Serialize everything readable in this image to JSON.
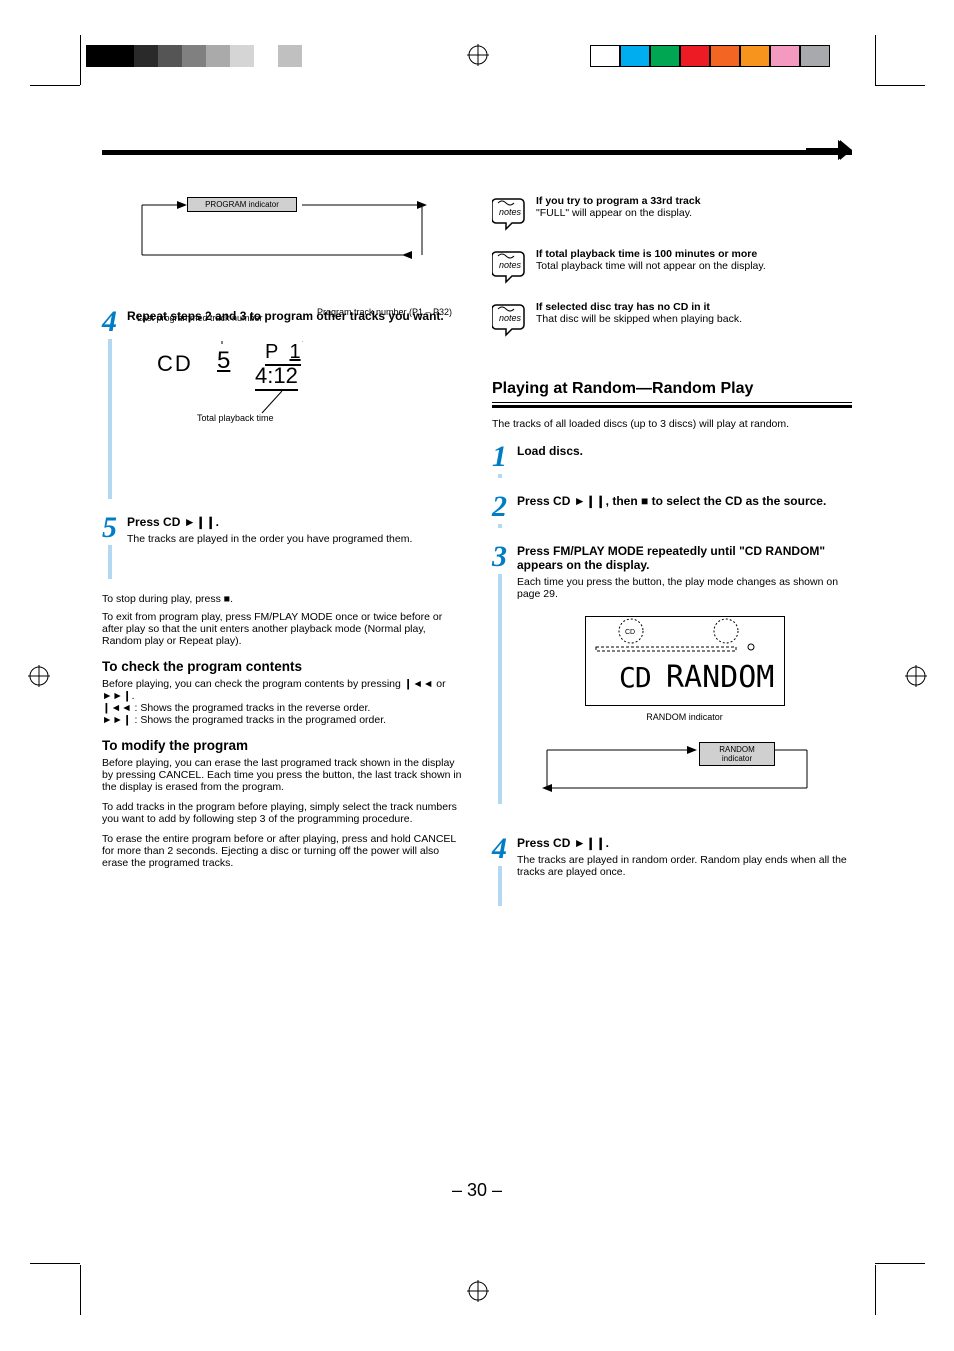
{
  "colorBars": {
    "left": [
      "#000000",
      "#000000",
      "#2a2a2a",
      "#555555",
      "#808080",
      "#aaaaaa",
      "#d5d5d5",
      "#ffffff",
      "#c0c0c0"
    ],
    "right": [
      "#ffffff",
      "#00adef",
      "#00a651",
      "#ed1c24",
      "#f26522",
      "#f7941d",
      "#f49ac1",
      "#a7a9ac"
    ]
  },
  "page": {
    "number": "– 30 –",
    "sectionHeading": "Playing at Random—Random Play"
  },
  "left": {
    "flow": {
      "indicator": "PROGRAM indicator"
    },
    "step4": {
      "num": "4",
      "title": "Repeat steps 2 and 3 to program other tracks you want.",
      "lcd": {
        "cd": "CD",
        "disc": "5",
        "p": "P",
        "prog": "1",
        "time": "4:12"
      },
      "cap1": "Last programmed track number",
      "cap2": "Program track number (P1 – P32)",
      "cap3": "Total playback time"
    },
    "step5": {
      "num": "5",
      "line": "Press CD ►❙❙.",
      "sub": "The tracks are played in the order you have programed them."
    },
    "stop": {
      "l1": "To stop during play, press ■.",
      "l2": "To exit from program play, press FM/PLAY MODE once or twice before or after play so that the unit enters another playback mode (Normal play, Random play or Repeat play)."
    },
    "check": {
      "title": "To check the program contents",
      "l1": "Before playing, you can check the program contents by pressing ❙◄◄ or ►►❙.",
      "l2": "❙◄◄ : Shows the programed tracks in the reverse order.",
      "l3": "►►❙ : Shows the programed tracks in the programed order."
    },
    "modify": {
      "title": "To modify the program",
      "p1": "Before playing, you can erase the last programed track shown in the display by pressing CANCEL. Each time you press the button, the last track shown in the display is erased from the program.",
      "p2": "To add tracks in the program before playing, simply select the track numbers you want to add by following step 3 of the programming procedure.",
      "p3": "To erase the entire program before or after playing, press and hold CANCEL for more than 2 seconds. Ejecting a disc or turning off the power will also erase the programed tracks."
    }
  },
  "right": {
    "notes": [
      {
        "t": "If you try to program a 33rd track",
        "b": "\"FULL\" will appear on the display."
      },
      {
        "t": "If total playback time is 100 minutes or more",
        "b": "Total playback time will not appear on the display."
      },
      {
        "t": "If selected disc tray has no CD in it",
        "b": "That disc will be skipped when playing back."
      }
    ],
    "introText": "The tracks of all loaded discs (up to 3 discs) will play at random.",
    "step1": {
      "num": "1",
      "text": "Load discs."
    },
    "step2": {
      "num": "2",
      "text": "Press CD ►❙❙, then ■ to select the CD as the source."
    },
    "step3": {
      "num": "3",
      "text": "Press FM/PLAY MODE repeatedly until \"CD RANDOM\" appears on the display.",
      "sub": "Each time you press the button, the play mode changes as shown on page 29.",
      "lcdLabel": "RANDOM indicator"
    },
    "step4": {
      "num": "4",
      "line": "Press CD ►❙❙.",
      "sub": "The tracks are played in random order. Random play ends when all the tracks are played once."
    },
    "flow": {
      "indicator": "RANDOM indicator"
    }
  }
}
